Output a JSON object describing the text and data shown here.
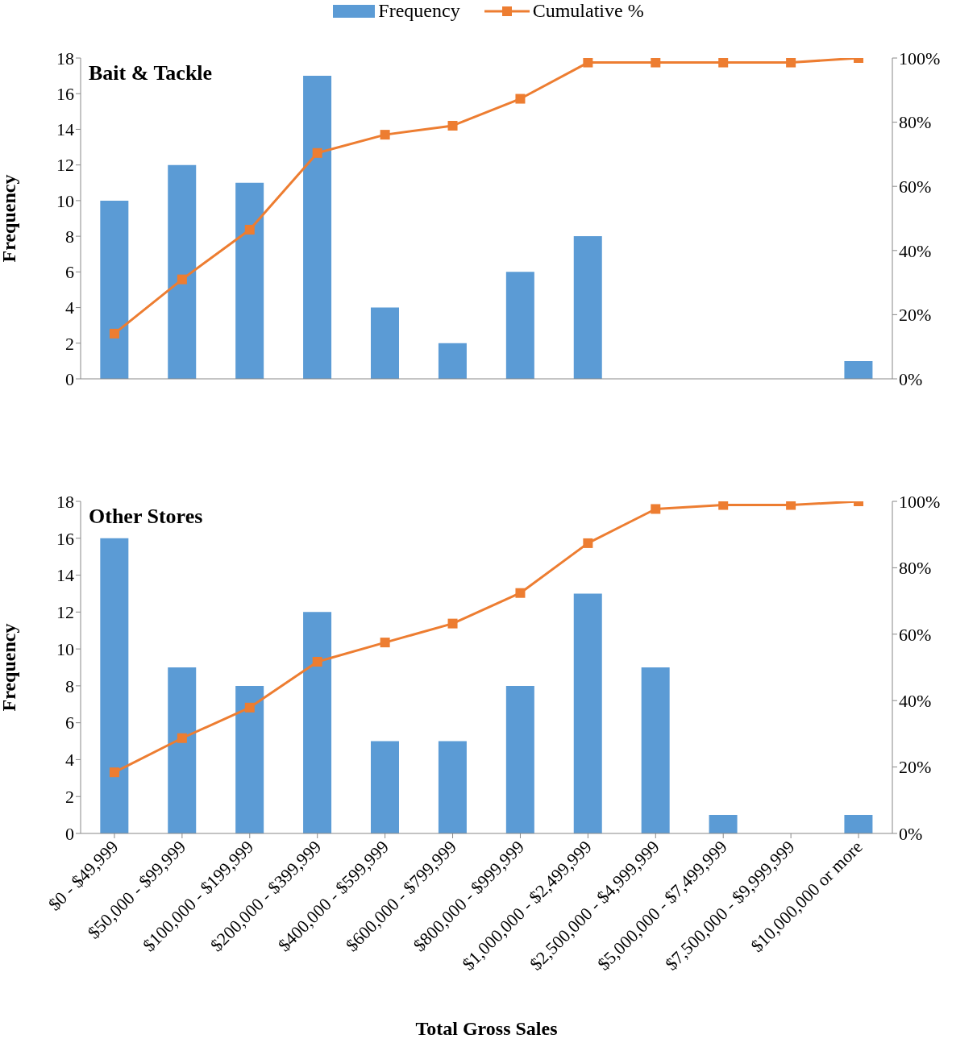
{
  "chart_data": [
    {
      "type": "bar",
      "title": "Bait & Tackle",
      "ylabel": "Frequency",
      "legend": "top",
      "tick_labels": "y",
      "categories": [
        null,
        null,
        null,
        null,
        null,
        null,
        null,
        null,
        null,
        null,
        null,
        null
      ],
      "series": [
        {
          "name": "Frequency",
          "color": "#5b9bd5",
          "values": [
            10,
            12,
            11,
            17,
            4,
            2,
            6,
            8,
            0,
            0,
            0,
            1
          ]
        },
        {
          "name": "Cumulative %",
          "type": "line",
          "axis": "y2",
          "marker": "square",
          "color": "#ed7d31",
          "values": [
            14.1,
            31.0,
            46.5,
            70.4,
            76.1,
            78.9,
            87.3,
            98.6,
            98.6,
            98.6,
            98.6,
            100
          ]
        }
      ],
      "ylim": [
        0,
        18
      ],
      "yticks": [
        0,
        2,
        4,
        6,
        8,
        10,
        12,
        14,
        16,
        18
      ],
      "y2lim": [
        0,
        100
      ],
      "y2ticks": [
        {
          "value": 0,
          "label": "0%"
        },
        {
          "value": 20,
          "label": "20%"
        },
        {
          "value": 40,
          "label": "40%"
        },
        {
          "value": 60,
          "label": "60%"
        },
        {
          "value": 80,
          "label": "80%"
        },
        {
          "value": 100,
          "label": "100%"
        }
      ]
    },
    {
      "type": "bar",
      "title": "Other Stores",
      "ylabel": "Frequency",
      "xlabel": "Total Gross Sales",
      "categories": [
        "$0 - $49,999",
        "$50,000 - $99,999",
        "$100,000 - $199,999",
        "$200,000 - $399,999",
        "$400,000 - $599,999",
        "$600,000 - $799,999",
        "$800,000 - $999,999",
        "$1,000,000 - $2,499,999",
        "$2,500,000 - $4,999,999",
        "$5,000,000 - $7,499,999",
        "$7,500,000 - $9,999,999",
        "$10,000,000 or more"
      ],
      "series": [
        {
          "color": "#5b9bd5",
          "values": [
            16,
            9,
            8,
            12,
            5,
            5,
            8,
            13,
            9,
            1,
            0,
            1
          ]
        },
        {
          "type": "line",
          "axis": "y2",
          "marker": "square",
          "color": "#ed7d31",
          "values": [
            18.4,
            28.7,
            37.9,
            51.7,
            57.5,
            63.2,
            72.4,
            87.4,
            97.7,
            98.9,
            98.9,
            100
          ]
        }
      ],
      "ylim": [
        0,
        18
      ],
      "yticks": [
        0,
        2,
        4,
        6,
        8,
        10,
        12,
        14,
        16,
        18
      ],
      "y2lim": [
        0,
        100
      ],
      "y2ticks": [
        {
          "value": 0,
          "label": "0%"
        },
        {
          "value": 20,
          "label": "20%"
        },
        {
          "value": 40,
          "label": "40%"
        },
        {
          "value": 60,
          "label": "60%"
        },
        {
          "value": 80,
          "label": "80%"
        },
        {
          "value": 100,
          "label": "100%"
        }
      ]
    }
  ]
}
